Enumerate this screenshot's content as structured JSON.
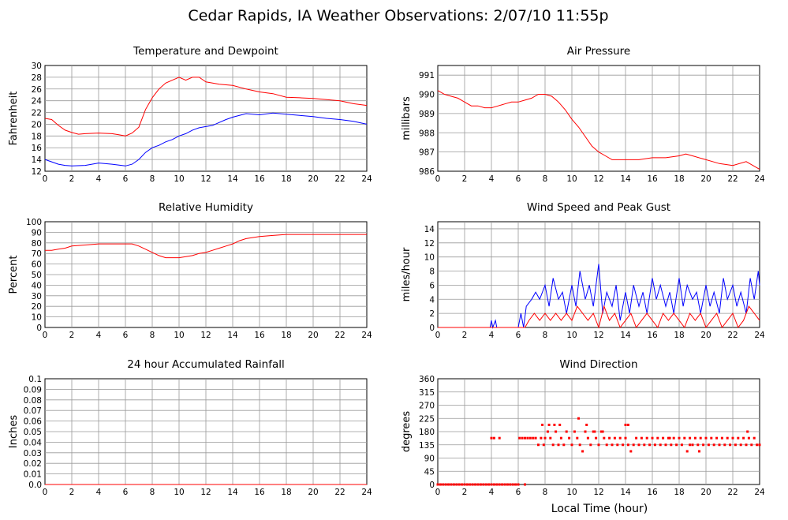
{
  "page_title": "Cedar Rapids, IA Weather Observations: 2/07/10 11:55p",
  "xlabel_bottom": "Local Time (hour)",
  "colors": {
    "primary": "#ff0000",
    "secondary": "#0000ff",
    "grid": "#999999"
  },
  "chart_data": [
    {
      "id": "temp",
      "type": "line",
      "title": "Temperature and Dewpoint",
      "ylabel": "Fahrenheit",
      "xlim": [
        0,
        24
      ],
      "ylim": [
        12,
        30
      ],
      "x_ticks": [
        "0",
        "2",
        "4",
        "6",
        "8",
        "10",
        "12",
        "14",
        "16",
        "18",
        "20",
        "22",
        "24"
      ],
      "y_ticks": [
        "12",
        "14",
        "16",
        "18",
        "20",
        "22",
        "24",
        "26",
        "28",
        "30"
      ],
      "grid": true,
      "series": [
        {
          "color": "#ff0000",
          "x": [
            0,
            0.5,
            1,
            1.5,
            2,
            2.5,
            3,
            4,
            5,
            5.5,
            6,
            6.5,
            7,
            7.5,
            8,
            8.5,
            9,
            9.5,
            10,
            10.5,
            11,
            11.5,
            12,
            12.5,
            13,
            14,
            15,
            16,
            17,
            18,
            19,
            20,
            21,
            22,
            23,
            24
          ],
          "y": [
            21,
            20.8,
            19.8,
            19,
            18.6,
            18.3,
            18.4,
            18.5,
            18.4,
            18.2,
            18,
            18.5,
            19.5,
            22.5,
            24.5,
            26,
            27,
            27.5,
            28,
            27.5,
            28,
            28,
            27.2,
            27,
            26.8,
            26.6,
            26,
            25.5,
            25.2,
            24.6,
            24.5,
            24.4,
            24.2,
            24,
            23.5,
            23.2
          ]
        },
        {
          "color": "#0000ff",
          "x": [
            0,
            0.5,
            1,
            1.5,
            2,
            3,
            4,
            5,
            6,
            6.5,
            7,
            7.5,
            8,
            8.5,
            9,
            9.5,
            10,
            10.5,
            11,
            11.5,
            12,
            12.5,
            13,
            13.5,
            14,
            15,
            16,
            17,
            18,
            19,
            20,
            21,
            22,
            23,
            24
          ],
          "y": [
            14,
            13.6,
            13.2,
            13,
            12.9,
            13,
            13.4,
            13.2,
            12.9,
            13.2,
            14,
            15.2,
            16,
            16.4,
            17,
            17.4,
            18,
            18.4,
            19,
            19.4,
            19.6,
            19.8,
            20.3,
            20.8,
            21.2,
            21.8,
            21.6,
            21.9,
            21.7,
            21.5,
            21.3,
            21,
            20.8,
            20.5,
            20
          ]
        }
      ]
    },
    {
      "id": "pressure",
      "type": "line",
      "title": "Air Pressure",
      "ylabel": "millibars",
      "xlim": [
        0,
        24
      ],
      "ylim": [
        986,
        991.5
      ],
      "x_ticks": [
        "0",
        "2",
        "4",
        "6",
        "8",
        "10",
        "12",
        "14",
        "16",
        "18",
        "20",
        "22",
        "24"
      ],
      "y_ticks": [
        "986",
        "987",
        "988",
        "989",
        "990",
        "991"
      ],
      "grid": true,
      "series": [
        {
          "color": "#ff0000",
          "x": [
            0,
            0.5,
            1,
            1.5,
            2,
            2.5,
            3,
            3.5,
            4,
            4.5,
            5,
            5.5,
            6,
            6.5,
            7,
            7.5,
            8,
            8.5,
            9,
            9.5,
            10,
            10.5,
            11,
            11.5,
            12,
            12.5,
            13,
            13.5,
            14,
            15,
            16,
            17,
            18,
            18.5,
            19,
            20,
            20.5,
            21,
            22,
            23,
            23.5,
            24
          ],
          "y": [
            990.2,
            990,
            989.9,
            989.8,
            989.6,
            989.4,
            989.4,
            989.3,
            989.3,
            989.4,
            989.5,
            989.6,
            989.6,
            989.7,
            989.8,
            990,
            990,
            989.9,
            989.6,
            989.2,
            988.7,
            988.3,
            987.8,
            987.3,
            987,
            986.8,
            986.6,
            986.6,
            986.6,
            986.6,
            986.7,
            986.7,
            986.8,
            986.9,
            986.8,
            986.6,
            986.5,
            986.4,
            986.3,
            986.5,
            986.3,
            986.1
          ]
        }
      ]
    },
    {
      "id": "humidity",
      "type": "line",
      "title": "Relative Humidity",
      "ylabel": "Percent",
      "xlim": [
        0,
        24
      ],
      "ylim": [
        0,
        100
      ],
      "x_ticks": [
        "0",
        "2",
        "4",
        "6",
        "8",
        "10",
        "12",
        "14",
        "16",
        "18",
        "20",
        "22",
        "24"
      ],
      "y_ticks": [
        "0",
        "10",
        "20",
        "30",
        "40",
        "50",
        "60",
        "70",
        "80",
        "90",
        "100"
      ],
      "grid": true,
      "series": [
        {
          "color": "#ff0000",
          "x": [
            0,
            0.5,
            1,
            1.5,
            2,
            3,
            4,
            5,
            6,
            6.5,
            7,
            7.5,
            8,
            8.5,
            9,
            9.5,
            10,
            10.5,
            11,
            11.5,
            12,
            12.5,
            13,
            13.5,
            14,
            14.5,
            15,
            16,
            17,
            18,
            19,
            20,
            21,
            22,
            23,
            24
          ],
          "y": [
            73,
            73,
            74,
            75,
            77,
            78,
            79,
            79,
            79,
            79,
            77,
            74,
            71,
            68,
            66,
            66,
            66,
            67,
            68,
            70,
            71,
            73,
            75,
            77,
            79,
            82,
            84,
            86,
            87,
            88,
            88,
            88,
            88,
            88,
            88,
            88
          ]
        }
      ]
    },
    {
      "id": "wind",
      "type": "line",
      "title": "Wind Speed and Peak Gust",
      "ylabel": "miles/hour",
      "xlim": [
        0,
        24
      ],
      "ylim": [
        0,
        15
      ],
      "x_ticks": [
        "0",
        "2",
        "4",
        "6",
        "8",
        "10",
        "12",
        "14",
        "16",
        "18",
        "20",
        "22",
        "24"
      ],
      "y_ticks": [
        "0",
        "2",
        "4",
        "6",
        "8",
        "10",
        "12",
        "14"
      ],
      "grid": true,
      "series": [
        {
          "color": "#0000ff",
          "x": [
            0,
            3.9,
            4,
            4.1,
            4.3,
            4.4,
            4.5,
            6,
            6.2,
            6.4,
            6.6,
            7,
            7.3,
            7.6,
            8,
            8.3,
            8.6,
            9,
            9.3,
            9.6,
            10,
            10.3,
            10.6,
            11,
            11.3,
            11.6,
            12,
            12.3,
            12.6,
            13,
            13.3,
            13.6,
            14,
            14.3,
            14.6,
            15,
            15.3,
            15.6,
            16,
            16.3,
            16.6,
            17,
            17.3,
            17.6,
            18,
            18.3,
            18.6,
            19,
            19.3,
            19.6,
            20,
            20.3,
            20.6,
            21,
            21.3,
            21.6,
            22,
            22.3,
            22.6,
            23,
            23.3,
            23.6,
            23.9,
            24
          ],
          "y": [
            0,
            0,
            1,
            0,
            1,
            0,
            0,
            0,
            2,
            0,
            3,
            4,
            5,
            4,
            6,
            3,
            7,
            4,
            5,
            2,
            6,
            3,
            8,
            4,
            6,
            3,
            9,
            2,
            5,
            3,
            6,
            1,
            5,
            2,
            6,
            3,
            5,
            2,
            7,
            4,
            6,
            3,
            5,
            2,
            7,
            3,
            6,
            4,
            5,
            2,
            6,
            3,
            5,
            2,
            7,
            4,
            6,
            3,
            5,
            2,
            7,
            4,
            8,
            6
          ]
        },
        {
          "color": "#ff0000",
          "x": [
            0,
            6,
            6.5,
            6.8,
            7.2,
            7.6,
            8,
            8.4,
            8.8,
            9.2,
            9.6,
            10,
            10.4,
            10.8,
            11.2,
            11.6,
            12,
            12.4,
            12.8,
            13.2,
            13.6,
            14,
            14.4,
            14.8,
            15.2,
            15.6,
            16,
            16.4,
            16.8,
            17.2,
            17.6,
            18,
            18.4,
            18.8,
            19.2,
            19.6,
            20,
            20.4,
            20.8,
            21.2,
            21.6,
            22,
            22.4,
            22.8,
            23.2,
            23.6,
            24
          ],
          "y": [
            0,
            0,
            0,
            1,
            2,
            1,
            2,
            1,
            2,
            1,
            2,
            1,
            3,
            2,
            1,
            2,
            0,
            3,
            1,
            2,
            0,
            1,
            2,
            0,
            1,
            2,
            1,
            0,
            2,
            1,
            2,
            1,
            0,
            2,
            1,
            2,
            0,
            1,
            2,
            0,
            1,
            2,
            0,
            1,
            3,
            2,
            1
          ]
        }
      ]
    },
    {
      "id": "rain",
      "type": "line",
      "title": "24 hour Accumulated Rainfall",
      "ylabel": "Inches",
      "xlim": [
        0,
        24
      ],
      "ylim": [
        0,
        0.1
      ],
      "x_ticks": [
        "0",
        "2",
        "4",
        "6",
        "8",
        "10",
        "12",
        "14",
        "16",
        "18",
        "20",
        "22",
        "24"
      ],
      "y_ticks": [
        "0.0",
        "0.01",
        "0.02",
        "0.03",
        "0.04",
        "0.05",
        "0.06",
        "0.07",
        "0.08",
        "0.09",
        "0.1"
      ],
      "grid": true,
      "series": [
        {
          "color": "#ff0000",
          "x": [
            0,
            24
          ],
          "y": [
            0,
            0
          ]
        }
      ]
    },
    {
      "id": "direction",
      "type": "scatter",
      "title": "Wind Direction",
      "ylabel": "degrees",
      "xlabel": "Local Time (hour)",
      "xlim": [
        0,
        24
      ],
      "ylim": [
        0,
        360
      ],
      "x_ticks": [
        "0",
        "2",
        "4",
        "6",
        "8",
        "10",
        "12",
        "14",
        "16",
        "18",
        "20",
        "22",
        "24"
      ],
      "y_ticks": [
        "0",
        "45",
        "90",
        "135",
        "180",
        "225",
        "270",
        "315",
        "360"
      ],
      "grid": true,
      "series": [
        {
          "color": "#ff0000",
          "x": [
            0,
            0.2,
            0.4,
            0.6,
            0.8,
            1,
            1.2,
            1.4,
            1.6,
            1.8,
            2,
            2.2,
            2.4,
            2.6,
            2.8,
            3,
            3.2,
            3.4,
            3.6,
            3.8,
            4,
            4.2,
            4.4,
            4.6,
            4.8,
            5,
            5.2,
            5.4,
            5.6,
            5.8,
            6,
            6.5,
            4,
            4.2,
            4.6,
            6.1,
            6.3,
            6.5,
            6.7,
            6.9,
            7.1,
            7.3,
            7.5,
            7.7,
            7.9,
            8,
            8.2,
            8.4,
            8.6,
            8.8,
            9,
            9.2,
            9.4,
            9.6,
            9.8,
            10,
            10.2,
            10.4,
            10.6,
            10.8,
            11,
            11.2,
            11.4,
            11.6,
            11.8,
            12,
            12.2,
            12.4,
            12.6,
            12.8,
            13,
            13.2,
            13.4,
            13.6,
            13.8,
            14,
            14.2,
            14.4,
            14.6,
            14.8,
            15,
            15.2,
            15.4,
            15.6,
            15.8,
            16,
            16.2,
            16.4,
            16.6,
            16.8,
            17,
            17.2,
            17.4,
            17.6,
            17.8,
            18,
            18.2,
            18.4,
            18.6,
            18.8,
            19,
            19.2,
            19.4,
            19.6,
            19.8,
            20,
            20.2,
            20.4,
            20.6,
            20.8,
            21,
            21.2,
            21.4,
            21.6,
            21.8,
            22,
            22.2,
            22.4,
            22.6,
            22.8,
            23,
            23.2,
            23.4,
            23.6,
            23.8,
            24,
            7.8,
            8.3,
            8.7,
            9.1,
            10.5,
            11.1,
            11.7,
            12.3,
            14,
            14.2,
            17.3,
            18.8,
            19.5,
            23.1
          ],
          "y": [
            0,
            0,
            0,
            0,
            0,
            0,
            0,
            0,
            0,
            0,
            0,
            0,
            0,
            0,
            0,
            0,
            0,
            0,
            0,
            0,
            0,
            0,
            0,
            0,
            0,
            0,
            0,
            0,
            0,
            0,
            0,
            0,
            158,
            158,
            158,
            158,
            158,
            158,
            158,
            158,
            158,
            158,
            135,
            158,
            135,
            158,
            180,
            158,
            135,
            180,
            135,
            158,
            135,
            180,
            158,
            135,
            180,
            158,
            135,
            113,
            180,
            158,
            135,
            180,
            158,
            135,
            180,
            158,
            135,
            158,
            135,
            158,
            135,
            158,
            135,
            158,
            135,
            113,
            135,
            158,
            135,
            158,
            135,
            158,
            135,
            158,
            135,
            158,
            135,
            158,
            135,
            158,
            135,
            158,
            135,
            158,
            135,
            158,
            113,
            158,
            135,
            158,
            135,
            158,
            135,
            158,
            135,
            158,
            135,
            158,
            135,
            158,
            135,
            158,
            135,
            158,
            135,
            158,
            135,
            158,
            135,
            158,
            135,
            158,
            135,
            135,
            203,
            203,
            203,
            203,
            225,
            203,
            180,
            180,
            203,
            203,
            158,
            135,
            113,
            180
          ]
        }
      ]
    }
  ]
}
